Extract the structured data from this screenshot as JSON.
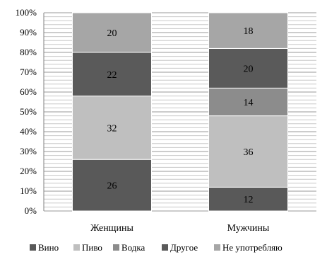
{
  "chart_data": {
    "type": "bar",
    "stacked": true,
    "percent": true,
    "categories": [
      "Женщины",
      "Мужчины"
    ],
    "series": [
      {
        "name": "Вино",
        "values": [
          26,
          12
        ],
        "color": "#595959"
      },
      {
        "name": "Пиво",
        "values": [
          32,
          36
        ],
        "color": "#bfbfbf"
      },
      {
        "name": "Водка",
        "values": [
          0,
          14
        ],
        "color": "#8c8c8c"
      },
      {
        "name": "Другое",
        "values": [
          22,
          20
        ],
        "color": "#5a5a5a"
      },
      {
        "name": "Не употребляю",
        "values": [
          20,
          18
        ],
        "color": "#a6a6a6"
      }
    ],
    "ylim": [
      0,
      100
    ],
    "yticks": [
      "0%",
      "10%",
      "20%",
      "30%",
      "40%",
      "50%",
      "60%",
      "70%",
      "80%",
      "90%",
      "100%"
    ],
    "grid": true,
    "legend": "bottom"
  }
}
